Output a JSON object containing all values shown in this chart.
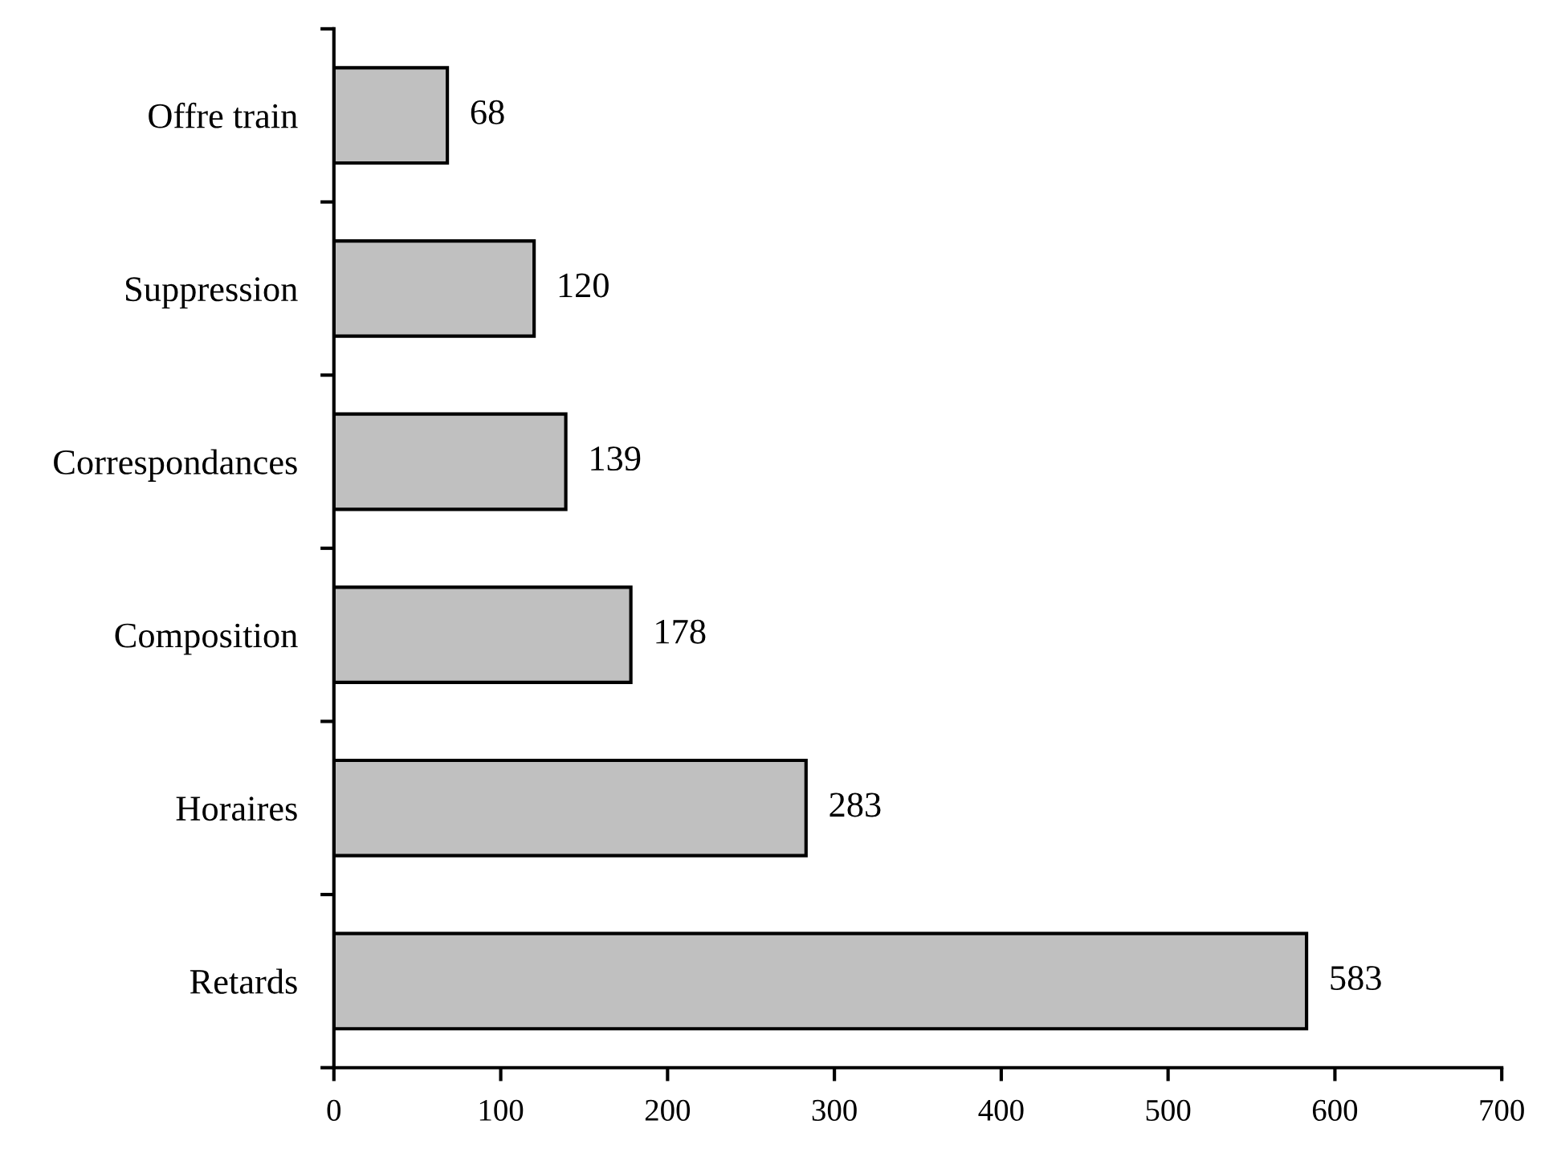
{
  "chart_data": {
    "type": "bar",
    "orientation": "horizontal",
    "categories": [
      "Offre train",
      "Suppression",
      "Correspondances",
      "Composition",
      "Horaires",
      "Retards"
    ],
    "values": [
      68,
      120,
      139,
      178,
      283,
      583
    ],
    "color": "#c0c0c0",
    "xlim": [
      0,
      700
    ],
    "xticks": [
      0,
      100,
      200,
      300,
      400,
      500,
      600,
      700
    ],
    "data_labels": true,
    "grid": false,
    "legend": false
  }
}
